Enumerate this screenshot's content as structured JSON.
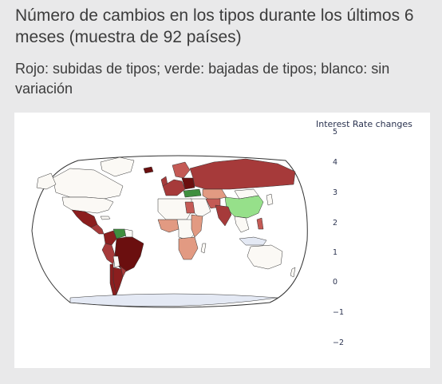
{
  "header": {
    "title": "Número de cambios en los tipos durante los últimos 6 meses (muestra de 92 países)",
    "subtitle": "Rojo: subidas de tipos; verde: bajadas de tipos; blanco: sin variación"
  },
  "chart_data": {
    "type": "choropleth",
    "colorbar": {
      "title": "Interest Rate changes",
      "ticks": [
        "5",
        "4",
        "3",
        "2",
        "1",
        "0",
        "−1",
        "−2"
      ]
    },
    "colors": {
      "increase_strong": "#6b0f0f",
      "increase_high": "#8b1e1e",
      "increase_mid": "#a63a3a",
      "increase_low": "#c45a55",
      "increase_min": "#e29a82",
      "no_change": "#fbf9f5",
      "decrease": "#3f8f3f",
      "decrease_light": "#96e08a",
      "no_data": "#e4e9f4",
      "ocean": "#ffffff"
    }
  }
}
